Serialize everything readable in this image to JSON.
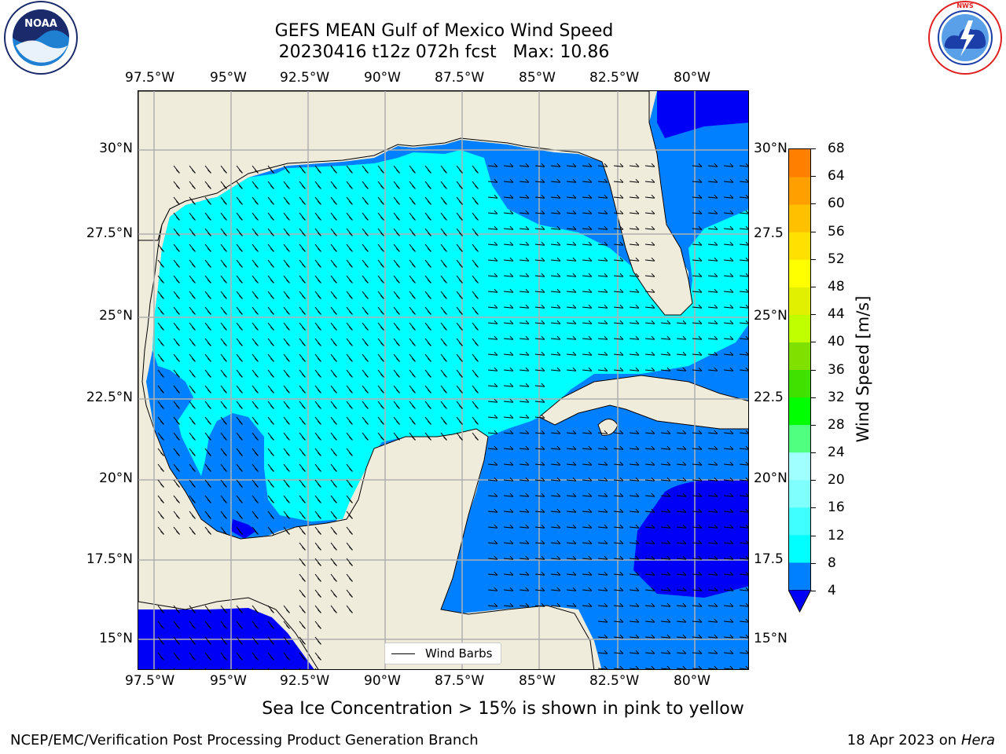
{
  "title": {
    "line1": "GEFS MEAN Gulf of Mexico Wind Speed",
    "line2": "20230416 t12z 072h fcst   Max: 10.86"
  },
  "logos": {
    "noaa": {
      "text": "NOAA",
      "ring_text": "NATIONAL OCEANIC AND ATMOSPHERIC ADMINISTRATION · U.S. DEPARTMENT OF COMMERCE"
    },
    "nws": {
      "ring_text": "NATIONAL WEATHER SERVICE"
    }
  },
  "map": {
    "lon_ticks": [
      "97.5°W",
      "95°W",
      "92.5°W",
      "90°W",
      "87.5°W",
      "85°W",
      "82.5°W",
      "80°W"
    ],
    "lat_ticks_left": [
      "30°N",
      "27.5°N",
      "25°N",
      "22.5°N",
      "20°N",
      "17.5°N",
      "15°N"
    ],
    "lat_ticks_right": [
      "30°N",
      "27.5",
      "25°N",
      "22.5",
      "20°N",
      "17.5",
      "15°N"
    ],
    "legend_label": "Wind Barbs",
    "colors": {
      "land": "#efecdc",
      "level_0_4": "#0000f6",
      "level_4_8": "#0080ff",
      "level_8_12": "#00ffff",
      "grid": "#b0b0b0"
    }
  },
  "colorbar": {
    "label": "Wind Speed [m/s]",
    "ticks": [
      "68",
      "64",
      "60",
      "56",
      "52",
      "48",
      "44",
      "40",
      "36",
      "32",
      "28",
      "24",
      "20",
      "16",
      "12",
      "8",
      "4"
    ],
    "colors_bottom_to_top": [
      "#0080ff",
      "#00ffff",
      "#40ffff",
      "#80ffff",
      "#a0ffff",
      "#50ff80",
      "#00ff00",
      "#40e000",
      "#80e000",
      "#c0ff00",
      "#e0f000",
      "#ffff00",
      "#ffe000",
      "#ffc000",
      "#ffa000",
      "#ff8000",
      "#ff6000",
      "#ff4000",
      "#ff0000"
    ],
    "extend_color": "#0000f6"
  },
  "note": "Sea Ice Concentration > 15% is shown in pink to yellow",
  "footer": {
    "left": "NCEP/EMC/Verification Post Processing Product Generation Branch",
    "right_date": "18 Apr 2023 on ",
    "right_machine": "Hera"
  }
}
